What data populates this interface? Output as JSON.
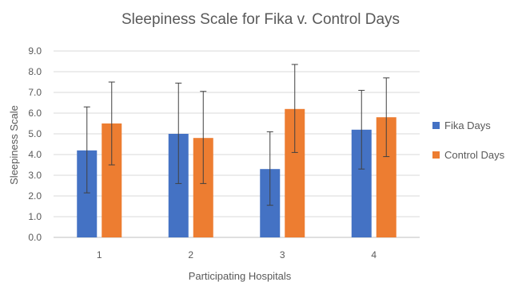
{
  "chart_data": {
    "type": "bar",
    "title": "Sleepiness  Scale for Fika v. Control Days",
    "xlabel": "Participating  Hospitals",
    "ylabel": "Sleepiness Scale",
    "categories": [
      "1",
      "2",
      "3",
      "4"
    ],
    "ylim": [
      0,
      9
    ],
    "yticks": [
      "0.0",
      "1.0",
      "2.0",
      "3.0",
      "4.0",
      "5.0",
      "6.0",
      "7.0",
      "8.0",
      "9.0"
    ],
    "grid": true,
    "legend_position": "right",
    "series": [
      {
        "name": "Fika Days",
        "color": "#4472C4",
        "values": [
          4.2,
          5.0,
          3.3,
          5.2
        ],
        "error_low": [
          2.15,
          2.6,
          1.55,
          3.3
        ],
        "error_high": [
          6.3,
          7.45,
          5.1,
          7.1
        ]
      },
      {
        "name": "Control Days",
        "color": "#ED7D31",
        "values": [
          5.5,
          4.8,
          6.2,
          5.8
        ],
        "error_low": [
          3.5,
          2.6,
          4.1,
          3.9
        ],
        "error_high": [
          7.5,
          7.05,
          8.35,
          7.7
        ]
      }
    ]
  }
}
